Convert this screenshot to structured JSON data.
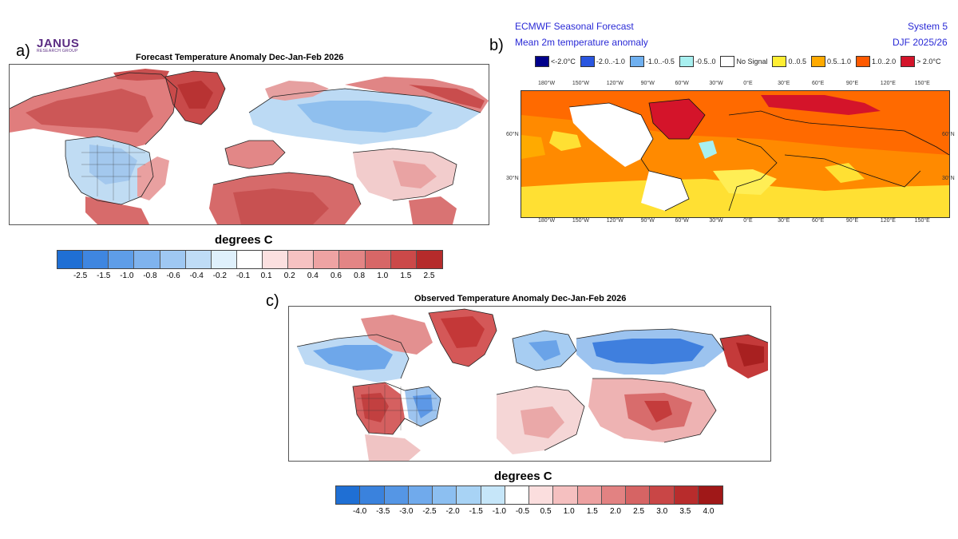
{
  "logo": {
    "name": "JANUS",
    "sub": "RESEARCH GROUP"
  },
  "panel_a": {
    "letter": "a)",
    "title": "Forecast Temperature Anomaly Dec-Jan-Feb 2026",
    "units": "degrees C",
    "colorbar": {
      "colors": [
        "#1f6fd4",
        "#3f86e0",
        "#5e9de8",
        "#7fb3ee",
        "#9fc8f2",
        "#bfdcf6",
        "#dff0fb",
        "#ffffff",
        "#fbe0e0",
        "#f6c2c2",
        "#eea3a3",
        "#e38585",
        "#d76767",
        "#cb4949",
        "#b52b2b"
      ],
      "ticks": [
        "-2.5",
        "-1.5",
        "-1.0",
        "-0.8",
        "-0.6",
        "-0.4",
        "-0.2",
        "-0.1",
        "0.1",
        "0.2",
        "0.4",
        "0.6",
        "0.8",
        "1.0",
        "1.5",
        "2.5"
      ]
    }
  },
  "panel_b": {
    "letter": "b)",
    "header_left_1": "ECMWF Seasonal Forecast",
    "header_left_2": "Mean 2m temperature anomaly",
    "header_right_1": "System 5",
    "header_right_2": "DJF 2025/26",
    "legend": [
      {
        "label": "<-2.0°C",
        "color": "#00008b"
      },
      {
        "label": "-2.0..-1.0",
        "color": "#2a56e0"
      },
      {
        "label": "-1.0..-0.5",
        "color": "#6fb0f0"
      },
      {
        "label": "-0.5..0",
        "color": "#a8f0f0"
      },
      {
        "label": "No Signal",
        "color": "#ffffff"
      },
      {
        "label": "0..0.5",
        "color": "#ffee33"
      },
      {
        "label": "0.5..1.0",
        "color": "#ffaa00"
      },
      {
        "label": "1.0..2.0",
        "color": "#ff5a00"
      },
      {
        "label": "> 2.0°C",
        "color": "#d4142a"
      }
    ],
    "lon_labels": [
      "180°W",
      "150°W",
      "120°W",
      "90°W",
      "60°W",
      "30°W",
      "0°E",
      "30°E",
      "60°E",
      "90°E",
      "120°E",
      "150°E"
    ],
    "lat_labels": [
      "60°N",
      "30°N"
    ]
  },
  "panel_c": {
    "letter": "c)",
    "title": "Observed Temperature Anomaly Dec-Jan-Feb 2026",
    "units": "degrees C",
    "colorbar": {
      "colors": [
        "#1f6fd4",
        "#3a82dd",
        "#5596e5",
        "#70aaec",
        "#8cbff1",
        "#a8d3f5",
        "#c6e6f9",
        "#ffffff",
        "#fbdede",
        "#f5c0c0",
        "#eda1a1",
        "#e28282",
        "#d66464",
        "#c94646",
        "#b82c2c",
        "#a01818"
      ],
      "ticks": [
        "-4.0",
        "-3.5",
        "-3.0",
        "-2.5",
        "-2.0",
        "-1.5",
        "-1.0",
        "-0.5",
        "0.5",
        "1.0",
        "1.5",
        "2.0",
        "2.5",
        "3.0",
        "3.5",
        "4.0"
      ]
    }
  }
}
